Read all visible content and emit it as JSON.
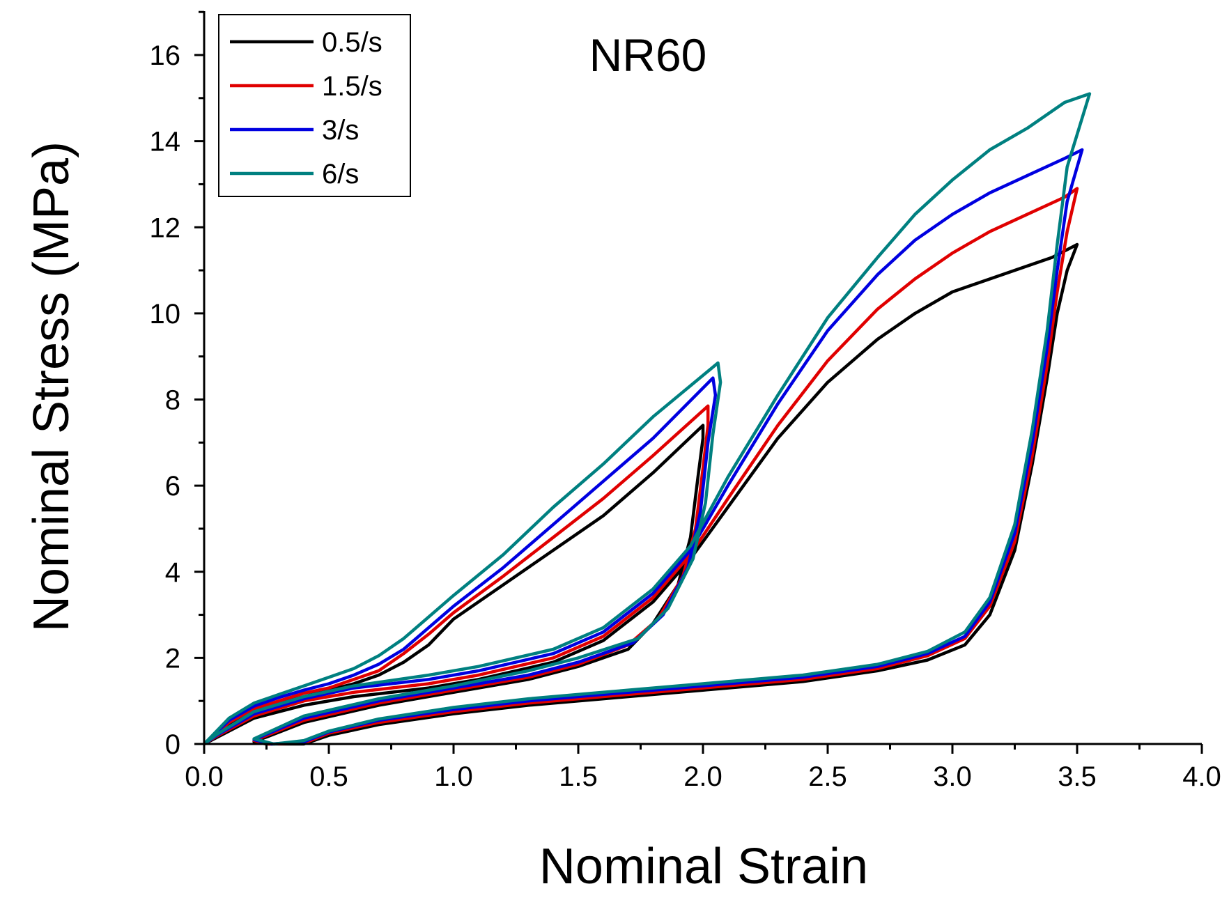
{
  "chart_data": {
    "type": "line",
    "title": "NR60",
    "xlabel": "Nominal Strain",
    "ylabel": "Nominal Stress (MPa)",
    "xlim": [
      0.0,
      4.0
    ],
    "ylim": [
      0,
      17
    ],
    "x_ticks": [
      "0.0",
      "0.5",
      "1.0",
      "1.5",
      "2.0",
      "2.5",
      "3.0",
      "3.5",
      "4.0"
    ],
    "y_ticks": [
      "0",
      "2",
      "4",
      "6",
      "8",
      "10",
      "12",
      "14",
      "16"
    ],
    "legend_position": "top-left",
    "series": [
      {
        "name": "0.5/s",
        "color": "#000000",
        "points": [
          [
            0.0,
            0.0
          ],
          [
            0.1,
            0.45
          ],
          [
            0.2,
            0.75
          ],
          [
            0.3,
            0.95
          ],
          [
            0.4,
            1.1
          ],
          [
            0.5,
            1.25
          ],
          [
            0.6,
            1.4
          ],
          [
            0.7,
            1.6
          ],
          [
            0.8,
            1.9
          ],
          [
            0.9,
            2.3
          ],
          [
            1.0,
            2.9
          ],
          [
            1.2,
            3.7
          ],
          [
            1.4,
            4.5
          ],
          [
            1.6,
            5.3
          ],
          [
            1.8,
            6.3
          ],
          [
            2.0,
            7.4
          ],
          [
            2.0,
            7.1
          ],
          [
            1.98,
            6.2
          ],
          [
            1.95,
            4.8
          ],
          [
            1.9,
            3.7
          ],
          [
            1.8,
            2.8
          ],
          [
            1.7,
            2.2
          ],
          [
            1.5,
            1.8
          ],
          [
            1.3,
            1.5
          ],
          [
            1.0,
            1.2
          ],
          [
            0.7,
            0.9
          ],
          [
            0.4,
            0.5
          ],
          [
            0.2,
            0.05
          ],
          [
            0.25,
            0.0
          ],
          [
            0.4,
            0.0
          ],
          [
            0.5,
            0.2
          ],
          [
            0.7,
            0.45
          ],
          [
            1.0,
            0.7
          ],
          [
            1.3,
            0.9
          ],
          [
            1.6,
            1.05
          ],
          [
            2.0,
            1.25
          ],
          [
            2.4,
            1.45
          ],
          [
            2.7,
            1.7
          ],
          [
            2.9,
            1.95
          ],
          [
            3.05,
            2.3
          ],
          [
            3.15,
            3.0
          ],
          [
            3.25,
            4.5
          ],
          [
            3.32,
            6.5
          ],
          [
            3.38,
            8.5
          ],
          [
            3.42,
            10.0
          ],
          [
            3.46,
            11.0
          ],
          [
            3.5,
            11.6
          ],
          [
            3.4,
            11.3
          ],
          [
            3.2,
            10.9
          ],
          [
            3.0,
            10.5
          ],
          [
            2.85,
            10.0
          ],
          [
            2.7,
            9.4
          ],
          [
            2.5,
            8.4
          ],
          [
            2.3,
            7.1
          ],
          [
            2.1,
            5.5
          ],
          [
            1.95,
            4.3
          ],
          [
            1.8,
            3.3
          ],
          [
            1.6,
            2.4
          ],
          [
            1.4,
            1.9
          ],
          [
            1.1,
            1.5
          ],
          [
            0.9,
            1.3
          ],
          [
            0.6,
            1.1
          ],
          [
            0.4,
            0.9
          ],
          [
            0.2,
            0.6
          ],
          [
            0.05,
            0.15
          ],
          [
            0.0,
            0.0
          ]
        ]
      },
      {
        "name": "1.5/s",
        "color": "#e00000",
        "points": [
          [
            0.0,
            0.0
          ],
          [
            0.1,
            0.5
          ],
          [
            0.2,
            0.82
          ],
          [
            0.3,
            1.0
          ],
          [
            0.4,
            1.18
          ],
          [
            0.5,
            1.3
          ],
          [
            0.6,
            1.5
          ],
          [
            0.7,
            1.7
          ],
          [
            0.8,
            2.1
          ],
          [
            0.9,
            2.55
          ],
          [
            1.0,
            3.05
          ],
          [
            1.2,
            3.9
          ],
          [
            1.4,
            4.8
          ],
          [
            1.6,
            5.7
          ],
          [
            1.8,
            6.7
          ],
          [
            2.02,
            7.85
          ],
          [
            2.02,
            7.4
          ],
          [
            2.0,
            6.4
          ],
          [
            1.97,
            5.0
          ],
          [
            1.92,
            3.9
          ],
          [
            1.82,
            2.9
          ],
          [
            1.7,
            2.3
          ],
          [
            1.5,
            1.85
          ],
          [
            1.3,
            1.55
          ],
          [
            1.0,
            1.25
          ],
          [
            0.7,
            0.95
          ],
          [
            0.4,
            0.55
          ],
          [
            0.2,
            0.08
          ],
          [
            0.26,
            0.0
          ],
          [
            0.4,
            0.02
          ],
          [
            0.5,
            0.25
          ],
          [
            0.7,
            0.5
          ],
          [
            1.0,
            0.75
          ],
          [
            1.3,
            0.95
          ],
          [
            1.6,
            1.1
          ],
          [
            2.0,
            1.3
          ],
          [
            2.4,
            1.5
          ],
          [
            2.7,
            1.75
          ],
          [
            2.9,
            2.05
          ],
          [
            3.05,
            2.45
          ],
          [
            3.15,
            3.2
          ],
          [
            3.25,
            4.7
          ],
          [
            3.32,
            6.7
          ],
          [
            3.38,
            8.8
          ],
          [
            3.42,
            10.5
          ],
          [
            3.46,
            11.9
          ],
          [
            3.5,
            12.9
          ],
          [
            3.45,
            12.7
          ],
          [
            3.3,
            12.3
          ],
          [
            3.15,
            11.9
          ],
          [
            3.0,
            11.4
          ],
          [
            2.85,
            10.8
          ],
          [
            2.7,
            10.1
          ],
          [
            2.5,
            8.9
          ],
          [
            2.3,
            7.4
          ],
          [
            2.1,
            5.7
          ],
          [
            1.95,
            4.4
          ],
          [
            1.8,
            3.4
          ],
          [
            1.6,
            2.5
          ],
          [
            1.4,
            2.0
          ],
          [
            1.1,
            1.6
          ],
          [
            0.9,
            1.4
          ],
          [
            0.6,
            1.2
          ],
          [
            0.4,
            1.0
          ],
          [
            0.2,
            0.65
          ],
          [
            0.05,
            0.18
          ],
          [
            0.0,
            0.0
          ]
        ]
      },
      {
        "name": "3/s",
        "color": "#0000e0",
        "points": [
          [
            0.0,
            0.0
          ],
          [
            0.1,
            0.55
          ],
          [
            0.2,
            0.88
          ],
          [
            0.3,
            1.08
          ],
          [
            0.4,
            1.25
          ],
          [
            0.5,
            1.4
          ],
          [
            0.6,
            1.6
          ],
          [
            0.7,
            1.85
          ],
          [
            0.8,
            2.2
          ],
          [
            0.9,
            2.7
          ],
          [
            1.0,
            3.2
          ],
          [
            1.2,
            4.1
          ],
          [
            1.4,
            5.1
          ],
          [
            1.6,
            6.1
          ],
          [
            1.8,
            7.1
          ],
          [
            2.04,
            8.5
          ],
          [
            2.05,
            8.1
          ],
          [
            2.02,
            7.0
          ],
          [
            1.99,
            5.4
          ],
          [
            1.94,
            4.1
          ],
          [
            1.84,
            3.0
          ],
          [
            1.72,
            2.35
          ],
          [
            1.5,
            1.9
          ],
          [
            1.3,
            1.6
          ],
          [
            1.0,
            1.3
          ],
          [
            0.7,
            1.0
          ],
          [
            0.4,
            0.6
          ],
          [
            0.2,
            0.1
          ],
          [
            0.27,
            0.0
          ],
          [
            0.4,
            0.05
          ],
          [
            0.5,
            0.28
          ],
          [
            0.7,
            0.55
          ],
          [
            1.0,
            0.8
          ],
          [
            1.3,
            1.0
          ],
          [
            1.6,
            1.15
          ],
          [
            2.0,
            1.35
          ],
          [
            2.4,
            1.55
          ],
          [
            2.7,
            1.8
          ],
          [
            2.9,
            2.1
          ],
          [
            3.05,
            2.5
          ],
          [
            3.15,
            3.3
          ],
          [
            3.25,
            4.9
          ],
          [
            3.32,
            7.0
          ],
          [
            3.38,
            9.2
          ],
          [
            3.42,
            11.0
          ],
          [
            3.46,
            12.6
          ],
          [
            3.52,
            13.8
          ],
          [
            3.45,
            13.6
          ],
          [
            3.3,
            13.2
          ],
          [
            3.15,
            12.8
          ],
          [
            3.0,
            12.3
          ],
          [
            2.85,
            11.7
          ],
          [
            2.7,
            10.9
          ],
          [
            2.5,
            9.6
          ],
          [
            2.3,
            7.9
          ],
          [
            2.1,
            6.0
          ],
          [
            1.95,
            4.5
          ],
          [
            1.8,
            3.5
          ],
          [
            1.6,
            2.6
          ],
          [
            1.4,
            2.1
          ],
          [
            1.1,
            1.7
          ],
          [
            0.9,
            1.5
          ],
          [
            0.6,
            1.3
          ],
          [
            0.4,
            1.05
          ],
          [
            0.2,
            0.7
          ],
          [
            0.05,
            0.2
          ],
          [
            0.0,
            0.0
          ]
        ]
      },
      {
        "name": "6/s",
        "color": "#008080",
        "points": [
          [
            0.0,
            0.0
          ],
          [
            0.1,
            0.6
          ],
          [
            0.2,
            0.95
          ],
          [
            0.3,
            1.15
          ],
          [
            0.4,
            1.35
          ],
          [
            0.5,
            1.55
          ],
          [
            0.6,
            1.75
          ],
          [
            0.7,
            2.05
          ],
          [
            0.8,
            2.45
          ],
          [
            0.9,
            2.95
          ],
          [
            1.0,
            3.45
          ],
          [
            1.2,
            4.4
          ],
          [
            1.4,
            5.5
          ],
          [
            1.6,
            6.5
          ],
          [
            1.8,
            7.6
          ],
          [
            2.06,
            8.85
          ],
          [
            2.07,
            8.4
          ],
          [
            2.04,
            7.2
          ],
          [
            2.01,
            5.6
          ],
          [
            1.96,
            4.3
          ],
          [
            1.86,
            3.15
          ],
          [
            1.74,
            2.45
          ],
          [
            1.5,
            2.0
          ],
          [
            1.3,
            1.7
          ],
          [
            1.0,
            1.35
          ],
          [
            0.7,
            1.05
          ],
          [
            0.4,
            0.65
          ],
          [
            0.2,
            0.12
          ],
          [
            0.28,
            0.0
          ],
          [
            0.4,
            0.08
          ],
          [
            0.5,
            0.3
          ],
          [
            0.7,
            0.58
          ],
          [
            1.0,
            0.85
          ],
          [
            1.3,
            1.05
          ],
          [
            1.6,
            1.2
          ],
          [
            2.0,
            1.4
          ],
          [
            2.4,
            1.6
          ],
          [
            2.7,
            1.85
          ],
          [
            2.9,
            2.15
          ],
          [
            3.05,
            2.6
          ],
          [
            3.15,
            3.4
          ],
          [
            3.25,
            5.1
          ],
          [
            3.32,
            7.3
          ],
          [
            3.38,
            9.6
          ],
          [
            3.42,
            11.6
          ],
          [
            3.46,
            13.4
          ],
          [
            3.55,
            15.1
          ],
          [
            3.45,
            14.9
          ],
          [
            3.3,
            14.3
          ],
          [
            3.15,
            13.8
          ],
          [
            3.0,
            13.1
          ],
          [
            2.85,
            12.3
          ],
          [
            2.7,
            11.3
          ],
          [
            2.5,
            9.9
          ],
          [
            2.3,
            8.1
          ],
          [
            2.1,
            6.2
          ],
          [
            1.95,
            4.6
          ],
          [
            1.8,
            3.6
          ],
          [
            1.6,
            2.7
          ],
          [
            1.4,
            2.2
          ],
          [
            1.1,
            1.8
          ],
          [
            0.9,
            1.6
          ],
          [
            0.6,
            1.35
          ],
          [
            0.4,
            1.1
          ],
          [
            0.2,
            0.75
          ],
          [
            0.05,
            0.22
          ],
          [
            0.0,
            0.0
          ]
        ]
      }
    ]
  }
}
